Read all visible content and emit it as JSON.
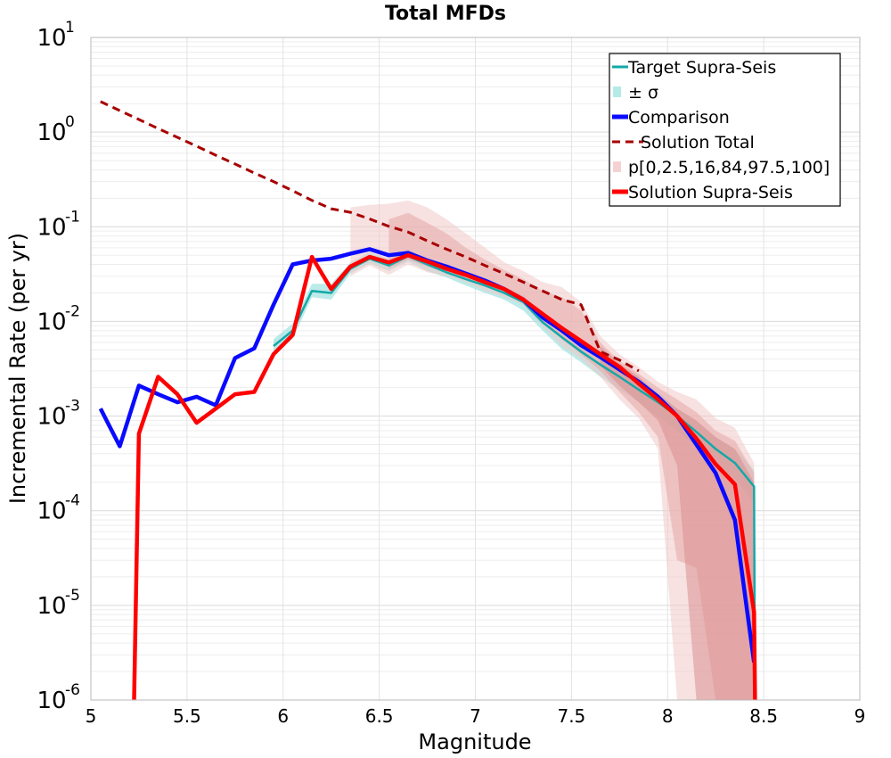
{
  "chart_data": {
    "type": "line",
    "title": "Total MFDs",
    "xlabel": "Magnitude",
    "ylabel": "Incremental Rate (per yr)",
    "xlim": [
      5,
      9
    ],
    "ylim_exp": [
      -6,
      1
    ],
    "yscale": "log",
    "x_ticks": [
      "5",
      "5.5",
      "6",
      "6.5",
      "7",
      "7.5",
      "8",
      "8.5",
      "9"
    ],
    "y_ticks": [
      {
        "base": "10",
        "exp": "1"
      },
      {
        "base": "10",
        "exp": "0"
      },
      {
        "base": "10",
        "exp": "-1"
      },
      {
        "base": "10",
        "exp": "-2"
      },
      {
        "base": "10",
        "exp": "-3"
      },
      {
        "base": "10",
        "exp": "-4"
      },
      {
        "base": "10",
        "exp": "-5"
      },
      {
        "base": "10",
        "exp": "-6"
      }
    ],
    "legend": {
      "position": "top-right",
      "entries": [
        {
          "label": "Target Supra-Seis",
          "kind": "line",
          "color": "#14a8a8"
        },
        {
          "label": "± σ",
          "kind": "patch",
          "color": "#b4ebe8"
        },
        {
          "label": "Comparison",
          "kind": "line",
          "color": "#0a0aff"
        },
        {
          "label": "Solution Total",
          "kind": "dashed",
          "color": "#a80000"
        },
        {
          "label": "p[0,2.5,16,84,97.5,100]",
          "kind": "patch",
          "color": "#f5d2d2"
        },
        {
          "label": "Solution Supra-Seis",
          "kind": "line",
          "color": "#ff0000"
        }
      ]
    },
    "bands": [
      {
        "name": "Target ± σ",
        "color": "#9fe3df",
        "opacity": 0.7,
        "x": [
          5.95,
          6.05,
          6.15,
          6.25,
          6.35,
          6.45,
          6.55,
          6.65,
          6.75,
          6.85,
          6.95,
          7.05,
          7.15,
          7.25,
          7.35,
          7.45,
          7.55,
          7.65,
          7.75,
          7.85,
          7.95,
          8.05,
          8.15,
          8.25,
          8.35,
          8.45
        ],
        "upper": [
          0.0065,
          0.0095,
          0.025,
          0.025,
          0.042,
          0.054,
          0.046,
          0.058,
          0.046,
          0.039,
          0.033,
          0.028,
          0.023,
          0.019,
          0.012,
          0.0085,
          0.0062,
          0.0046,
          0.0034,
          0.0025,
          0.0018,
          0.0012,
          0.00088,
          0.0006,
          0.00045,
          0.00027
        ],
        "lower": [
          0.0045,
          0.0065,
          0.018,
          0.017,
          0.032,
          0.041,
          0.034,
          0.043,
          0.034,
          0.029,
          0.024,
          0.02,
          0.017,
          0.013,
          0.008,
          0.0051,
          0.0037,
          0.0026,
          0.0019,
          0.0014,
          0.001,
          0.0007,
          0.00048,
          0.0003,
          0.00022,
          0.00012
        ]
      },
      {
        "name": "p[0,100]",
        "color": "#f0c8c8",
        "opacity": 0.55,
        "x": [
          6.35,
          6.45,
          6.55,
          6.65,
          6.75,
          6.85,
          6.95,
          7.05,
          7.15,
          7.25,
          7.35,
          7.45,
          7.55,
          7.65,
          7.75,
          7.85,
          7.95,
          8.05,
          8.15,
          8.25,
          8.35,
          8.45
        ],
        "upper": [
          0.16,
          0.17,
          0.175,
          0.19,
          0.16,
          0.12,
          0.085,
          0.06,
          0.042,
          0.034,
          0.026,
          0.023,
          0.016,
          0.007,
          0.0045,
          0.0033,
          0.0023,
          0.0018,
          0.0015,
          0.00095,
          0.00075,
          0.00032
        ],
        "lower": [
          0.03,
          0.039,
          0.031,
          0.04,
          0.033,
          0.03,
          0.026,
          0.021,
          0.018,
          0.015,
          0.0088,
          0.0055,
          0.004,
          0.0026,
          0.0015,
          0.00095,
          0.00045,
          1e-06,
          1e-06,
          1e-06,
          1e-06,
          1e-06
        ]
      },
      {
        "name": "p[2.5,97.5]",
        "color": "#e8a8a8",
        "opacity": 0.55,
        "x": [
          6.55,
          6.65,
          6.75,
          6.85,
          6.95,
          7.05,
          7.15,
          7.25,
          7.35,
          7.45,
          7.55,
          7.65,
          7.75,
          7.85,
          7.95,
          8.05,
          8.15,
          8.25,
          8.35,
          8.45
        ],
        "upper": [
          0.12,
          0.14,
          0.11,
          0.085,
          0.06,
          0.045,
          0.035,
          0.028,
          0.021,
          0.018,
          0.013,
          0.006,
          0.0038,
          0.0028,
          0.002,
          0.0015,
          0.0011,
          0.0007,
          0.00055,
          0.00025
        ],
        "lower": [
          0.036,
          0.045,
          0.038,
          0.033,
          0.028,
          0.023,
          0.02,
          0.016,
          0.01,
          0.0065,
          0.0045,
          0.003,
          0.0018,
          0.0011,
          0.0006,
          3e-05,
          2.5e-05,
          1e-06,
          1e-06,
          1e-06
        ]
      },
      {
        "name": "p[16,84]",
        "color": "#d88a8a",
        "opacity": 0.5,
        "x": [
          7.65,
          7.75,
          7.85,
          7.95,
          8.05,
          8.15,
          8.25,
          8.35,
          8.45
        ],
        "upper": [
          0.0055,
          0.0036,
          0.0026,
          0.0017,
          0.0012,
          0.0009,
          0.0006,
          0.00045,
          0.0002
        ],
        "lower": [
          0.0034,
          0.0021,
          0.0014,
          0.0009,
          0.0003,
          1e-06,
          1e-06,
          1e-06,
          1e-06
        ]
      }
    ],
    "series": [
      {
        "name": "Solution Total",
        "color": "#a80000",
        "width": 3,
        "dash": "9,6",
        "x": [
          5.05,
          5.15,
          5.25,
          5.35,
          5.45,
          5.55,
          5.65,
          5.75,
          5.85,
          5.95,
          6.05,
          6.15,
          6.25,
          6.35,
          6.45,
          6.55,
          6.65,
          6.75,
          6.85,
          6.95,
          7.05,
          7.15,
          7.25,
          7.35,
          7.45,
          7.55,
          7.65,
          7.75,
          7.85
        ],
        "values": [
          2.1,
          1.69,
          1.36,
          1.09,
          0.88,
          0.71,
          0.57,
          0.46,
          0.37,
          0.3,
          0.24,
          0.19,
          0.155,
          0.142,
          0.121,
          0.101,
          0.088,
          0.071,
          0.058,
          0.048,
          0.039,
          0.032,
          0.026,
          0.021,
          0.017,
          0.015,
          0.0048,
          0.0039,
          0.003
        ]
      },
      {
        "name": "Target Supra-Seis",
        "color": "#14a8a8",
        "width": 2.5,
        "x": [
          5.95,
          6.05,
          6.15,
          6.25,
          6.35,
          6.45,
          6.55,
          6.65,
          6.75,
          6.85,
          6.95,
          7.05,
          7.15,
          7.25,
          7.35,
          7.45,
          7.55,
          7.65,
          7.75,
          7.85,
          7.95,
          8.05,
          8.15,
          8.25,
          8.35,
          8.45,
          8.455
        ],
        "values": [
          0.0055,
          0.008,
          0.021,
          0.02,
          0.036,
          0.046,
          0.039,
          0.049,
          0.04,
          0.033,
          0.028,
          0.024,
          0.02,
          0.016,
          0.0098,
          0.0068,
          0.0048,
          0.0035,
          0.0026,
          0.0019,
          0.0014,
          0.001,
          0.00068,
          0.00045,
          0.00032,
          0.00018,
          1e-06
        ]
      },
      {
        "name": "Comparison",
        "color": "#0a0aff",
        "width": 4.5,
        "x": [
          5.05,
          5.15,
          5.25,
          5.35,
          5.45,
          5.55,
          5.65,
          5.75,
          5.85,
          5.95,
          6.05,
          6.15,
          6.25,
          6.35,
          6.45,
          6.55,
          6.65,
          6.75,
          6.85,
          6.95,
          7.05,
          7.15,
          7.25,
          7.35,
          7.45,
          7.55,
          7.65,
          7.75,
          7.85,
          7.95,
          8.05,
          8.15,
          8.25,
          8.35,
          8.45
        ],
        "values": [
          0.0012,
          0.00048,
          0.0021,
          0.0017,
          0.0014,
          0.0016,
          0.0013,
          0.0041,
          0.0052,
          0.015,
          0.04,
          0.044,
          0.046,
          0.052,
          0.058,
          0.05,
          0.053,
          0.044,
          0.038,
          0.032,
          0.027,
          0.022,
          0.017,
          0.011,
          0.008,
          0.0056,
          0.0042,
          0.0031,
          0.0023,
          0.0016,
          0.001,
          0.0005,
          0.00025,
          8e-05,
          2.5e-06
        ]
      },
      {
        "name": "Solution Supra-Seis",
        "color": "#ff0000",
        "width": 4.5,
        "x": [
          5.225,
          5.25,
          5.35,
          5.45,
          5.55,
          5.65,
          5.75,
          5.85,
          5.95,
          6.05,
          6.15,
          6.25,
          6.35,
          6.45,
          6.55,
          6.65,
          6.75,
          6.85,
          6.95,
          7.05,
          7.15,
          7.25,
          7.35,
          7.45,
          7.55,
          7.65,
          7.75,
          7.85,
          7.95,
          8.05,
          8.15,
          8.25,
          8.35,
          8.45,
          8.455
        ],
        "values": [
          1e-06,
          0.00065,
          0.0026,
          0.0017,
          0.00085,
          0.0012,
          0.0017,
          0.0018,
          0.0045,
          0.0072,
          0.048,
          0.022,
          0.038,
          0.048,
          0.042,
          0.05,
          0.043,
          0.036,
          0.031,
          0.026,
          0.022,
          0.017,
          0.012,
          0.0085,
          0.0062,
          0.0045,
          0.0033,
          0.0022,
          0.0015,
          0.001,
          0.00058,
          0.00031,
          0.00019,
          8.5e-06,
          1e-06
        ]
      }
    ]
  }
}
